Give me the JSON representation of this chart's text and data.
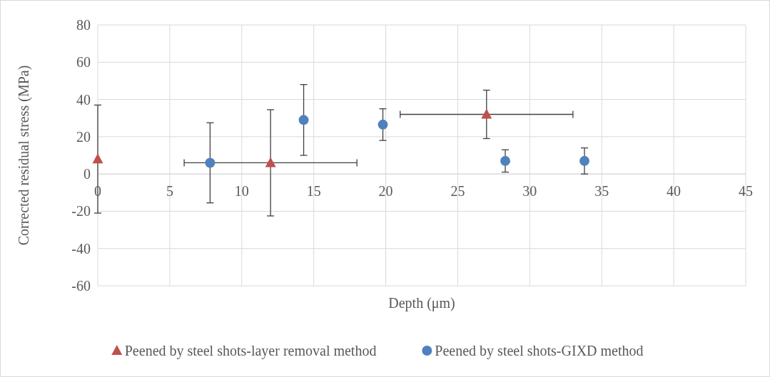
{
  "chart_data": {
    "type": "scatter",
    "xlabel": "Depth (μm)",
    "ylabel": "Corrected residual stress (MPa)",
    "xlim": [
      0,
      45
    ],
    "xticks": [
      0,
      5,
      10,
      15,
      20,
      25,
      30,
      35,
      40,
      45
    ],
    "ylim": [
      -60,
      80
    ],
    "yticks": [
      -60,
      -40,
      -20,
      0,
      20,
      40,
      60,
      80
    ],
    "grid": true,
    "legend": "bottom",
    "series": [
      {
        "name": "Peened by steel shots-layer removal method",
        "color": "#c0504d",
        "marker": "triangle",
        "x": [
          0,
          12,
          27
        ],
        "values": [
          8,
          6,
          32
        ],
        "errors": [
          29,
          28.5,
          13
        ],
        "xerrors": [
          null,
          6,
          6
        ]
      },
      {
        "name": "Peened by steel shots-GIXD method",
        "color": "#4f81bd",
        "marker": "circle",
        "x": [
          7.8,
          14.3,
          19.8,
          28.3,
          33.8
        ],
        "values": [
          6,
          29,
          26.5,
          7,
          7
        ],
        "errors": [
          21.5,
          19,
          8.5,
          6,
          7
        ]
      }
    ]
  }
}
